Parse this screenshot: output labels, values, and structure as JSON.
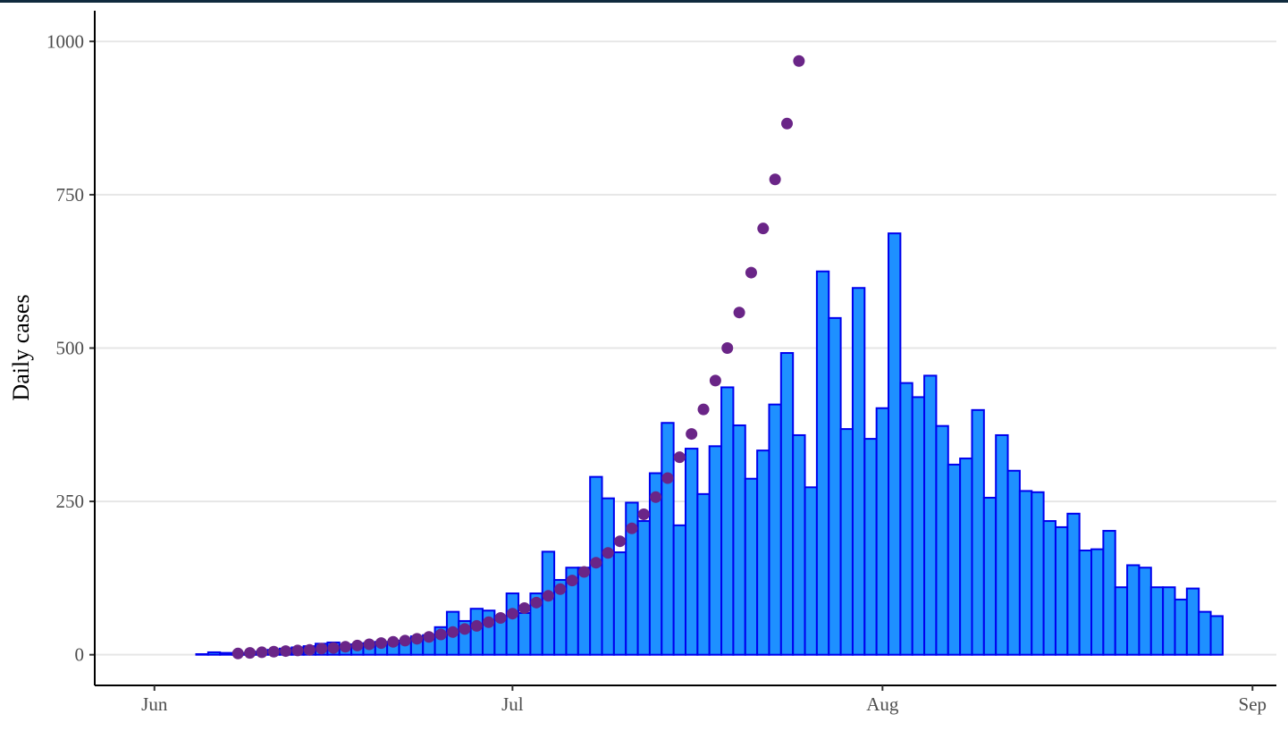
{
  "chart_data": {
    "type": "bar",
    "title": "",
    "xlabel": "",
    "ylabel": "Daily cases",
    "x_axis": {
      "type": "date",
      "range": [
        "2020-05-27",
        "2020-09-03"
      ],
      "ticks": [
        {
          "date": "2020-06-01",
          "label": "Jun"
        },
        {
          "date": "2020-07-01",
          "label": "Jul"
        },
        {
          "date": "2020-08-01",
          "label": "Aug"
        },
        {
          "date": "2020-09-01",
          "label": "Sep"
        }
      ]
    },
    "y_axis": {
      "range": [
        -50,
        1050
      ],
      "ticks": [
        0,
        250,
        500,
        750,
        1000
      ]
    },
    "grid": {
      "horizontal": true,
      "vertical": false
    },
    "series": [
      {
        "kind": "bar",
        "fill_color": "#1e90ff",
        "stroke_color": "#0000ee",
        "start_date": "2020-06-05",
        "values": [
          1,
          4,
          3,
          2,
          3,
          5,
          8,
          10,
          12,
          14,
          18,
          20,
          12,
          17,
          19,
          21,
          18,
          23,
          30,
          32,
          45,
          70,
          55,
          75,
          72,
          62,
          100,
          68,
          100,
          168,
          122,
          142,
          142,
          290,
          255,
          167,
          248,
          218,
          296,
          378,
          211,
          336,
          262,
          340,
          436,
          374,
          287,
          333,
          408,
          492,
          358,
          273,
          625,
          549,
          368,
          598,
          352,
          402,
          687,
          443,
          420,
          455,
          373,
          310,
          320,
          399,
          256,
          358,
          300,
          267,
          265,
          218,
          208,
          230,
          170,
          172,
          202,
          110,
          146,
          142,
          110,
          110,
          90,
          108,
          70,
          63
        ]
      },
      {
        "kind": "points",
        "color": "#6a2587",
        "start_date": "2020-06-08",
        "values": [
          2,
          3,
          4,
          5,
          6,
          7,
          8,
          10,
          11,
          13,
          15,
          17,
          19,
          21,
          23,
          26,
          29,
          33,
          37,
          42,
          47,
          53,
          60,
          67,
          76,
          85,
          96,
          107,
          121,
          135,
          150,
          166,
          185,
          206,
          229,
          257,
          288,
          322,
          360,
          400,
          447,
          500,
          558,
          623,
          695,
          775,
          866,
          968
        ]
      }
    ]
  }
}
